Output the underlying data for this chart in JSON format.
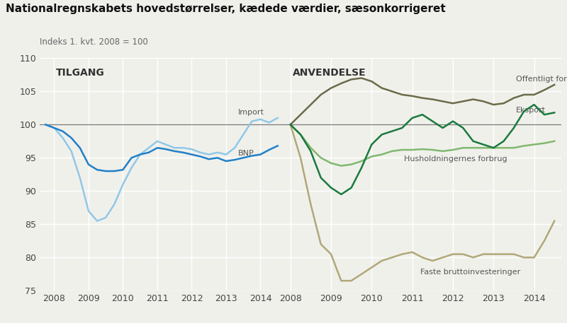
{
  "title": "Nationalregnskabets hovedstørrelser, kædede værdier, sæsonkorrigeret",
  "subtitle": "Indeks 1. kvt. 2008 = 100",
  "ylim": [
    75,
    110
  ],
  "yticks": [
    75,
    80,
    85,
    90,
    95,
    100,
    105,
    110
  ],
  "bg_color": "#f0f0eb",
  "grid_color": "#ffffff",
  "tilgang_label": "TILGANG",
  "anvendelse_label": "ANVENDELSE",
  "bnp_color": "#2080c8",
  "import_color": "#90c8e8",
  "offentligt_color": "#6b6b4a",
  "eksport_color": "#1a7a3c",
  "husholdning_color": "#80b870",
  "investering_color": "#b0a878",
  "bnp_label": "BNP",
  "import_label": "Import",
  "offentligt_label": "Offentligt forbrug",
  "eksport_label": "Eksport",
  "husholdning_label": "Husholdningernes forbrug",
  "investering_label": "Faste bruttoinvesteringer",
  "bnp_x": [
    2007.75,
    2008.0,
    2008.25,
    2008.5,
    2008.75,
    2009.0,
    2009.25,
    2009.5,
    2009.75,
    2010.0,
    2010.25,
    2010.5,
    2010.75,
    2011.0,
    2011.25,
    2011.5,
    2011.75,
    2012.0,
    2012.25,
    2012.5,
    2012.75,
    2013.0,
    2013.25,
    2013.5,
    2013.75,
    2014.0,
    2014.25,
    2014.5
  ],
  "bnp_y": [
    100,
    99.5,
    99,
    98,
    96.5,
    94,
    93.2,
    93,
    93.0,
    93.2,
    95,
    95.5,
    95.8,
    96.5,
    96.3,
    96.0,
    95.8,
    95.5,
    95.2,
    94.8,
    95.0,
    94.5,
    94.7,
    95.0,
    95.3,
    95.5,
    96.2,
    96.8
  ],
  "import_x": [
    2007.75,
    2008.0,
    2008.25,
    2008.5,
    2008.75,
    2009.0,
    2009.25,
    2009.5,
    2009.75,
    2010.0,
    2010.25,
    2010.5,
    2010.75,
    2011.0,
    2011.25,
    2011.5,
    2011.75,
    2012.0,
    2012.25,
    2012.5,
    2012.75,
    2013.0,
    2013.25,
    2013.5,
    2013.75,
    2014.0,
    2014.25,
    2014.5
  ],
  "import_y": [
    100,
    99.5,
    98,
    96,
    92,
    87,
    85.5,
    86,
    88,
    91,
    93.5,
    95.5,
    96.5,
    97.5,
    97,
    96.5,
    96.5,
    96.3,
    95.8,
    95.5,
    95.8,
    95.5,
    96.5,
    98.5,
    100.5,
    100.8,
    100.3,
    101.0
  ],
  "offentligt_x": [
    2008.0,
    2008.25,
    2008.5,
    2008.75,
    2009.0,
    2009.25,
    2009.5,
    2009.75,
    2010.0,
    2010.25,
    2010.5,
    2010.75,
    2011.0,
    2011.25,
    2011.5,
    2011.75,
    2012.0,
    2012.25,
    2012.5,
    2012.75,
    2013.0,
    2013.25,
    2013.5,
    2013.75,
    2014.0,
    2014.25,
    2014.5
  ],
  "offentligt_y": [
    100,
    101.5,
    103.0,
    104.5,
    105.5,
    106.2,
    106.8,
    107.0,
    106.5,
    105.5,
    105.0,
    104.5,
    104.3,
    104.0,
    103.8,
    103.5,
    103.2,
    103.5,
    103.8,
    103.5,
    103.0,
    103.2,
    104.0,
    104.5,
    104.5,
    105.2,
    106.0
  ],
  "eksport_x": [
    2008.0,
    2008.25,
    2008.5,
    2008.75,
    2009.0,
    2009.25,
    2009.5,
    2009.75,
    2010.0,
    2010.25,
    2010.5,
    2010.75,
    2011.0,
    2011.25,
    2011.5,
    2011.75,
    2012.0,
    2012.25,
    2012.5,
    2012.75,
    2013.0,
    2013.25,
    2013.5,
    2013.75,
    2014.0,
    2014.25,
    2014.5
  ],
  "eksport_y": [
    100,
    98.5,
    96,
    92,
    90.5,
    89.5,
    90.5,
    93.5,
    97.0,
    98.5,
    99.0,
    99.5,
    101.0,
    101.5,
    100.5,
    99.5,
    100.5,
    99.5,
    97.5,
    97.0,
    96.5,
    97.5,
    99.5,
    102.0,
    103.0,
    101.5,
    101.8
  ],
  "husholdning_x": [
    2008.0,
    2008.25,
    2008.5,
    2008.75,
    2009.0,
    2009.25,
    2009.5,
    2009.75,
    2010.0,
    2010.25,
    2010.5,
    2010.75,
    2011.0,
    2011.25,
    2011.5,
    2011.75,
    2012.0,
    2012.25,
    2012.5,
    2012.75,
    2013.0,
    2013.25,
    2013.5,
    2013.75,
    2014.0,
    2014.25,
    2014.5
  ],
  "husholdning_y": [
    100,
    98.5,
    96.5,
    95.0,
    94.2,
    93.8,
    94.0,
    94.5,
    95.2,
    95.5,
    96.0,
    96.2,
    96.2,
    96.3,
    96.2,
    96.0,
    96.2,
    96.5,
    96.5,
    96.5,
    96.5,
    96.5,
    96.5,
    96.8,
    97.0,
    97.2,
    97.5
  ],
  "investering_x": [
    2008.0,
    2008.25,
    2008.5,
    2008.75,
    2009.0,
    2009.25,
    2009.5,
    2009.75,
    2010.0,
    2010.25,
    2010.5,
    2010.75,
    2011.0,
    2011.25,
    2011.5,
    2011.75,
    2012.0,
    2012.25,
    2012.5,
    2012.75,
    2013.0,
    2013.25,
    2013.5,
    2013.75,
    2014.0,
    2014.25,
    2014.5
  ],
  "investering_y": [
    100,
    95,
    88,
    82,
    80.5,
    76.5,
    76.5,
    77.5,
    78.5,
    79.5,
    80.0,
    80.5,
    80.8,
    80.0,
    79.5,
    80.0,
    80.5,
    80.5,
    80.0,
    80.5,
    80.5,
    80.5,
    80.5,
    80.0,
    80.0,
    82.5,
    85.5
  ],
  "left_xlim": [
    2007.58,
    2014.67
  ],
  "right_xlim": [
    2007.83,
    2014.67
  ],
  "left_xticks": [
    2008,
    2009,
    2010,
    2011,
    2012,
    2013,
    2014
  ],
  "right_xticks": [
    2008,
    2009,
    2010,
    2011,
    2012,
    2013,
    2014
  ]
}
